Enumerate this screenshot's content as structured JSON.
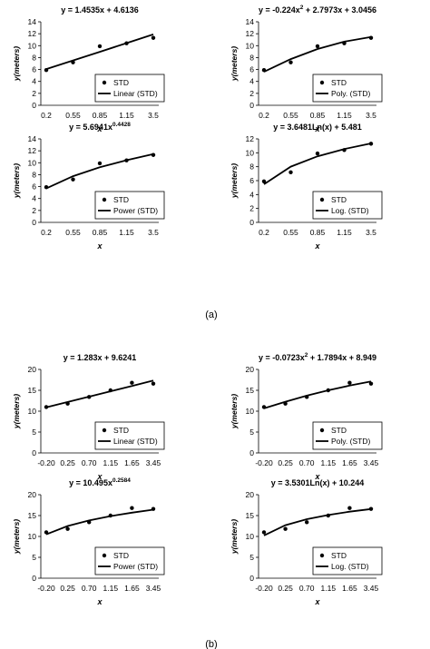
{
  "panels": [
    {
      "id": "a",
      "label": "(a)"
    },
    {
      "id": "b",
      "label": "(b)"
    }
  ],
  "chart_data": [
    {
      "type": "scatter",
      "panel": "a",
      "title": "y = 1.4535x + 4.6136",
      "xlabel": "x",
      "ylabel": "y(meters)",
      "categories": [
        "0.2",
        "0.55",
        "0.85",
        "1.15",
        "3.5"
      ],
      "ylim": [
        0,
        14
      ],
      "yticks": [
        0,
        2,
        4,
        6,
        8,
        10,
        12,
        14
      ],
      "series": [
        {
          "name": "STD",
          "type": "scatter",
          "values": [
            5.9,
            7.2,
            9.9,
            10.4,
            11.3
          ]
        },
        {
          "name": "Linear (STD)",
          "type": "line",
          "values": [
            6.07,
            7.52,
            8.97,
            10.43,
            11.88
          ]
        }
      ],
      "legend": [
        "STD",
        "Linear (STD)"
      ]
    },
    {
      "type": "scatter",
      "panel": "a",
      "title": "y = -0.224x² + 2.7973x + 3.0456",
      "title_main": "y = -0.224x",
      "title_sup": "2",
      "title_rest": " + 2.7973x + 3.0456",
      "xlabel": "x",
      "ylabel": "y(meters)",
      "categories": [
        "0.2",
        "0.55",
        "0.85",
        "1.15",
        "3.5"
      ],
      "ylim": [
        0,
        14
      ],
      "yticks": [
        0,
        2,
        4,
        6,
        8,
        10,
        12,
        14
      ],
      "series": [
        {
          "name": "STD",
          "type": "scatter",
          "values": [
            5.9,
            7.2,
            9.9,
            10.4,
            11.3
          ]
        },
        {
          "name": "Poly. (STD)",
          "type": "line",
          "values": [
            5.62,
            7.75,
            9.43,
            10.66,
            11.44
          ]
        }
      ],
      "legend": [
        "STD",
        "Poly. (STD)"
      ]
    },
    {
      "type": "scatter",
      "panel": "a",
      "title": "y = 5.6941x^0.4428",
      "title_main": "y = 5.6941x",
      "title_sup": "0.4428",
      "title_rest": "",
      "xlabel": "x",
      "ylabel": "y(meters)",
      "categories": [
        "0.2",
        "0.55",
        "0.85",
        "1.15",
        "3.5"
      ],
      "ylim": [
        0,
        14
      ],
      "yticks": [
        0,
        2,
        4,
        6,
        8,
        10,
        12,
        14
      ],
      "series": [
        {
          "name": "STD",
          "type": "scatter",
          "values": [
            5.9,
            7.2,
            9.9,
            10.4,
            11.3
          ]
        },
        {
          "name": "Power (STD)",
          "type": "line",
          "values": [
            5.69,
            7.75,
            9.23,
            10.43,
            11.45
          ]
        }
      ],
      "legend": [
        "STD",
        "Power (STD)"
      ]
    },
    {
      "type": "scatter",
      "panel": "a",
      "title": "y = 3.6481Ln(x) + 5.481",
      "xlabel": "x",
      "ylabel": "y(meters)",
      "categories": [
        "0.2",
        "0.55",
        "0.85",
        "1.15",
        "3.5"
      ],
      "ylim": [
        0,
        12
      ],
      "yticks": [
        0,
        2,
        4,
        6,
        8,
        10,
        12
      ],
      "series": [
        {
          "name": "STD",
          "type": "scatter",
          "values": [
            5.9,
            7.2,
            9.9,
            10.4,
            11.3
          ]
        },
        {
          "name": "Log. (STD)",
          "type": "line",
          "values": [
            5.48,
            8.01,
            9.49,
            10.54,
            11.35
          ]
        }
      ],
      "legend": [
        "STD",
        "Log. (STD)"
      ]
    },
    {
      "type": "scatter",
      "panel": "b",
      "title": "y = 1.283x + 9.6241",
      "xlabel": "x",
      "ylabel": "y(meters)",
      "categories": [
        "-0.20",
        "0.25",
        "0.70",
        "1.15",
        "1.65",
        "3.45"
      ],
      "ylim": [
        0,
        20
      ],
      "yticks": [
        0,
        5,
        10,
        15,
        20
      ],
      "series": [
        {
          "name": "STD",
          "type": "scatter",
          "values": [
            11.0,
            11.8,
            13.4,
            15.0,
            16.8,
            16.6
          ]
        },
        {
          "name": "Linear (STD)",
          "type": "line",
          "values": [
            10.91,
            12.19,
            13.47,
            14.76,
            16.04,
            17.32
          ]
        }
      ],
      "legend": [
        "STD",
        "Linear (STD)"
      ]
    },
    {
      "type": "scatter",
      "panel": "b",
      "title": "y = -0.0723x² + 1.7894x + 8.949",
      "title_main": "y = -0.0723x",
      "title_sup": "2",
      "title_rest": " + 1.7894x + 8.949",
      "xlabel": "x",
      "ylabel": "y(meters)",
      "categories": [
        "-0.20",
        "0.25",
        "0.70",
        "1.15",
        "1.65",
        "3.45"
      ],
      "ylim": [
        0,
        20
      ],
      "yticks": [
        0,
        5,
        10,
        15,
        20
      ],
      "series": [
        {
          "name": "STD",
          "type": "scatter",
          "values": [
            11.0,
            11.8,
            13.4,
            15.0,
            16.8,
            16.6
          ]
        },
        {
          "name": "Poly. (STD)",
          "type": "line",
          "values": [
            10.67,
            12.26,
            13.71,
            15.0,
            16.14,
            17.14
          ]
        }
      ],
      "legend": [
        "STD",
        "Poly. (STD)"
      ]
    },
    {
      "type": "scatter",
      "panel": "b",
      "title": "y = 10.495x^0.2584",
      "title_main": "y = 10.495x",
      "title_sup": "0.2584",
      "title_rest": "",
      "xlabel": "x",
      "ylabel": "y(meters)",
      "categories": [
        "-0.20",
        "0.25",
        "0.70",
        "1.15",
        "1.65",
        "3.45"
      ],
      "ylim": [
        0,
        20
      ],
      "yticks": [
        0,
        5,
        10,
        15,
        20
      ],
      "series": [
        {
          "name": "STD",
          "type": "scatter",
          "values": [
            11.0,
            11.8,
            13.4,
            15.0,
            16.8,
            16.6
          ]
        },
        {
          "name": "Power (STD)",
          "type": "line",
          "values": [
            10.5,
            12.5,
            13.83,
            14.86,
            15.7,
            16.42
          ]
        }
      ],
      "legend": [
        "STD",
        "Power (STD)"
      ]
    },
    {
      "type": "scatter",
      "panel": "b",
      "title": "y = 3.5301Ln(x) + 10.244",
      "xlabel": "x",
      "ylabel": "y(meters)",
      "categories": [
        "-0.20",
        "0.25",
        "0.70",
        "1.15",
        "1.65",
        "3.45"
      ],
      "ylim": [
        0,
        20
      ],
      "yticks": [
        0,
        5,
        10,
        15,
        20
      ],
      "series": [
        {
          "name": "STD",
          "type": "scatter",
          "values": [
            11.0,
            11.8,
            13.4,
            15.0,
            16.8,
            16.6
          ]
        },
        {
          "name": "Log. (STD)",
          "type": "line",
          "values": [
            10.24,
            12.69,
            14.12,
            15.14,
            15.93,
            16.57
          ]
        }
      ],
      "legend": [
        "STD",
        "Log. (STD)"
      ]
    }
  ]
}
